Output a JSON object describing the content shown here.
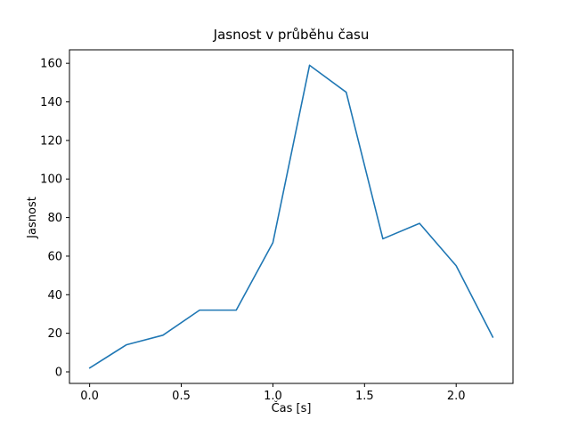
{
  "chart_data": {
    "type": "line",
    "title": "Jasnost v průběhu času",
    "xlabel": "Čas [s]",
    "ylabel": "Jasnost",
    "x": [
      0.0,
      0.2,
      0.4,
      0.6,
      0.8,
      1.0,
      1.2,
      1.4,
      1.6,
      1.8,
      2.0,
      2.2
    ],
    "values": [
      2,
      14,
      19,
      32,
      32,
      67,
      159,
      145,
      69,
      77,
      55,
      18
    ],
    "series_name": "Jasnost",
    "line_color": "#1f77b4",
    "xlim": [
      -0.11,
      2.31
    ],
    "ylim": [
      -6.0,
      167.0
    ],
    "xticks": [
      0.0,
      0.5,
      1.0,
      1.5,
      2.0
    ],
    "xtick_labels": [
      "0.0",
      "0.5",
      "1.0",
      "1.5",
      "2.0"
    ],
    "yticks": [
      0,
      20,
      40,
      60,
      80,
      100,
      120,
      140,
      160
    ],
    "ytick_labels": [
      "0",
      "20",
      "40",
      "60",
      "80",
      "100",
      "120",
      "140",
      "160"
    ],
    "grid": false,
    "legend": "none"
  }
}
